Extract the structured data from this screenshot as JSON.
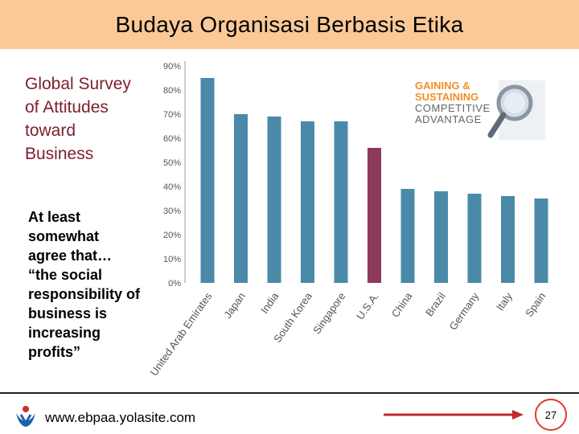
{
  "slide": {
    "title": "Budaya Organisasi Berbasis Etika",
    "heading": "Global Survey of Attitudes toward Business",
    "subtext": "At least somewhat agree that… “the social responsibility of business is increasing profits”",
    "footer_url": "www.ebpaa.yolasite.com",
    "page_number": "27"
  },
  "logo": {
    "line1": "GAINING &",
    "line2": "SUSTAINING",
    "line3": "COMPETITIVE",
    "line4": "ADVANTAGE",
    "icon": "magnifying-glass-icon"
  },
  "colors": {
    "title_band": "#fbc997",
    "bar_default": "#4a8aa8",
    "bar_highlight": "#8b3a5c",
    "heading_text": "#7a1f2e",
    "arrow": "#c0282d"
  },
  "chart_data": {
    "type": "bar",
    "categories": [
      "United Arab Emirates",
      "Japan",
      "India",
      "South Korea",
      "Singapore",
      "U.S.A.",
      "China",
      "Brazil",
      "Germany",
      "Italy",
      "Spain"
    ],
    "values": [
      85,
      70,
      69,
      67,
      67,
      56,
      39,
      38,
      37,
      36,
      35
    ],
    "highlight_index": 5,
    "yticks": [
      "0%",
      "10%",
      "20%",
      "30%",
      "40%",
      "50%",
      "60%",
      "70%",
      "80%",
      "90%"
    ],
    "ylim": [
      0,
      90
    ],
    "grid": false
  }
}
